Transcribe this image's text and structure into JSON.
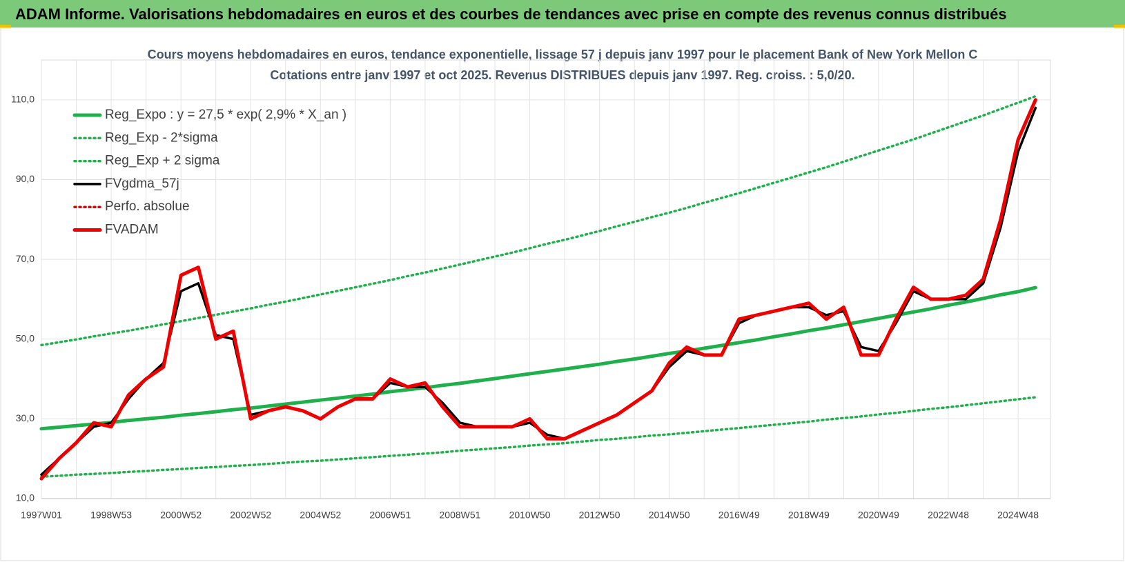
{
  "header": {
    "title": "ADAM Informe. Valorisations hebdomadaires en euros et des courbes de tendances avec prise en compte des revenus connus distribués"
  },
  "chart_data": {
    "type": "line",
    "title": "Cours moyens hebdomadaires en euros, tendance exponentielle, lissage 57 j depuis janv 1997 pour le placement Bank of New York Mellon C",
    "subtitle": "Cotations entre janv 1997 et oct 2025. Revenus DISTRIBUES depuis janv 1997. Reg. croiss. : 5,0/20.",
    "categories": [
      "1997W01",
      null,
      null,
      null,
      "1998W53",
      null,
      null,
      null,
      "2000W52",
      null,
      null,
      null,
      "2002W52",
      null,
      null,
      null,
      "2004W52",
      null,
      null,
      null,
      "2006W51",
      null,
      null,
      null,
      "2008W51",
      null,
      null,
      null,
      "2010W50",
      null,
      null,
      null,
      "2012W50",
      null,
      null,
      null,
      "2014W50",
      null,
      null,
      null,
      "2016W49",
      null,
      null,
      null,
      "2018W49",
      null,
      null,
      null,
      "2020W49",
      null,
      null,
      null,
      "2022W48",
      null,
      null,
      null,
      "2024W48",
      null
    ],
    "ylim": [
      10,
      120
    ],
    "yticks": [
      {
        "value": 10,
        "label": "10,0"
      },
      {
        "value": 30,
        "label": "30,0"
      },
      {
        "value": 50,
        "label": "50,0"
      },
      {
        "value": 70,
        "label": "70,0"
      },
      {
        "value": 90,
        "label": "90,0"
      },
      {
        "value": 110,
        "label": "110,0"
      }
    ],
    "grid": true,
    "legend": "upper-left",
    "series": [
      {
        "name": "Reg_Expo : y = 27,5 * exp( 2,9% *  X_an )",
        "color": "#1fb04b",
        "dash": "solid",
        "values": [
          27.5,
          27.9,
          28.3,
          28.7,
          29.1,
          29.6,
          30.0,
          30.4,
          30.9,
          31.3,
          31.8,
          32.3,
          32.7,
          33.2,
          33.7,
          34.2,
          34.7,
          35.2,
          35.7,
          36.2,
          36.8,
          37.3,
          37.8,
          38.4,
          38.9,
          39.5,
          40.1,
          40.7,
          41.3,
          41.9,
          42.5,
          43.1,
          43.7,
          44.4,
          45.0,
          45.7,
          46.4,
          47.0,
          47.7,
          48.4,
          49.1,
          49.8,
          50.6,
          51.3,
          52.1,
          52.8,
          53.6,
          54.4,
          55.2,
          56.0,
          56.8,
          57.6,
          58.5,
          59.3,
          60.2,
          61.1,
          61.9,
          62.9
        ]
      },
      {
        "name": "Reg_Exp - 2*sigma",
        "color": "#1fb04b",
        "dash": "dotted",
        "values": [
          15.5,
          15.7,
          16.0,
          16.2,
          16.4,
          16.7,
          16.9,
          17.2,
          17.4,
          17.7,
          17.9,
          18.2,
          18.4,
          18.7,
          19.0,
          19.3,
          19.5,
          19.8,
          20.1,
          20.4,
          20.7,
          21.0,
          21.3,
          21.6,
          22.0,
          22.3,
          22.6,
          22.9,
          23.3,
          23.6,
          23.9,
          24.3,
          24.7,
          25.0,
          25.4,
          25.8,
          26.1,
          26.5,
          26.9,
          27.3,
          27.7,
          28.1,
          28.5,
          28.9,
          29.3,
          29.8,
          30.2,
          30.6,
          31.1,
          31.5,
          32.0,
          32.5,
          32.9,
          33.4,
          33.9,
          34.4,
          34.9,
          35.4
        ]
      },
      {
        "name": "Reg_Exp + 2 sigma",
        "color": "#1fb04b",
        "dash": "dotted",
        "values": [
          48.5,
          49.2,
          49.9,
          50.7,
          51.4,
          52.1,
          52.9,
          53.7,
          54.5,
          55.3,
          56.1,
          56.9,
          57.7,
          58.6,
          59.4,
          60.3,
          61.2,
          62.1,
          63.0,
          63.9,
          64.8,
          65.8,
          66.7,
          67.7,
          68.7,
          69.7,
          70.7,
          71.7,
          72.8,
          73.9,
          74.9,
          76.0,
          77.1,
          78.3,
          79.4,
          80.6,
          81.7,
          82.9,
          84.2,
          85.4,
          86.6,
          87.9,
          89.2,
          90.5,
          91.8,
          93.1,
          94.5,
          95.9,
          97.3,
          98.7,
          100.1,
          101.6,
          103.1,
          104.6,
          106.1,
          107.7,
          109.3,
          110.9
        ]
      },
      {
        "name": "FVgdma_57j",
        "color": "#000000",
        "dash": "solid",
        "values": [
          16,
          20,
          24,
          28,
          29,
          35,
          40,
          44,
          62,
          64,
          51,
          50,
          31,
          32,
          33,
          32,
          30,
          33,
          35,
          35,
          39,
          38,
          38,
          34,
          29,
          28,
          28,
          28,
          29,
          26,
          25,
          27,
          29,
          31,
          34,
          37,
          43,
          47,
          46,
          46,
          54,
          56,
          57,
          58,
          58,
          56,
          57,
          48,
          47,
          54,
          62,
          60,
          60,
          60,
          64,
          78,
          97,
          108
        ]
      },
      {
        "name": "Perfo. absolue",
        "color": "#e00000",
        "dash": "dotted",
        "values": [
          15,
          20,
          24,
          29,
          28,
          36,
          40,
          43,
          66,
          68,
          50,
          52,
          30,
          32,
          33,
          32,
          30,
          33,
          35,
          35,
          40,
          38,
          39,
          33,
          28,
          28,
          28,
          28,
          30,
          25,
          25,
          27,
          29,
          31,
          34,
          37,
          44,
          48,
          46,
          46,
          55,
          56,
          57,
          58,
          59,
          55,
          58,
          46,
          46,
          55,
          63,
          60,
          60,
          61,
          65,
          80,
          100,
          110
        ]
      },
      {
        "name": "FVADAM",
        "color": "#ee0000",
        "dash": "solid",
        "values": [
          15,
          20,
          24,
          29,
          28,
          36,
          40,
          43,
          66,
          68,
          50,
          52,
          30,
          32,
          33,
          32,
          30,
          33,
          35,
          35,
          40,
          38,
          39,
          33,
          28,
          28,
          28,
          28,
          30,
          25,
          25,
          27,
          29,
          31,
          34,
          37,
          44,
          48,
          46,
          46,
          55,
          56,
          57,
          58,
          59,
          55,
          58,
          46,
          46,
          55,
          63,
          60,
          60,
          61,
          65,
          80,
          100,
          110
        ]
      }
    ]
  }
}
